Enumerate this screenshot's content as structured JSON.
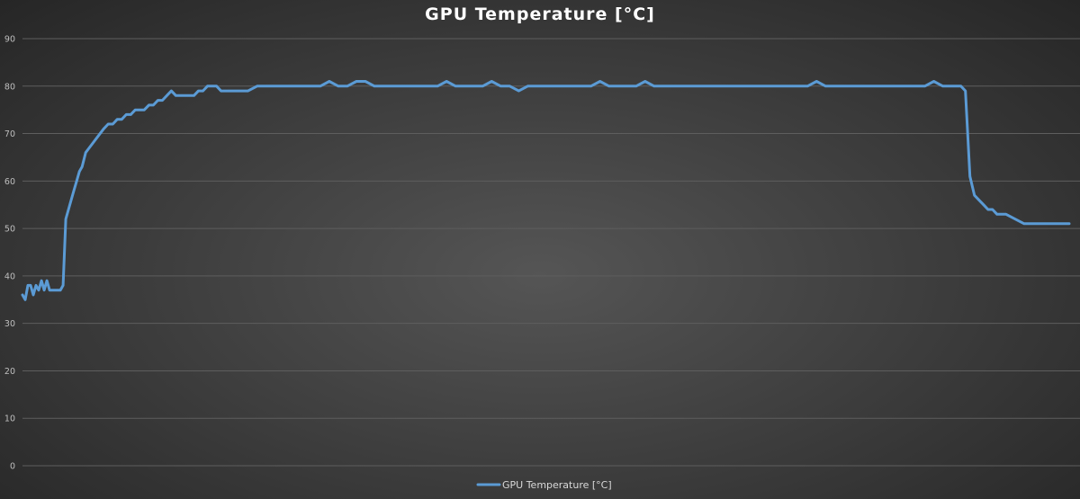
{
  "chart_data": {
    "type": "line",
    "title": "GPU Temperature [°C]",
    "xlabel": "",
    "ylabel": "",
    "ylim": [
      0,
      90
    ],
    "yticks": [
      0,
      10,
      20,
      30,
      40,
      50,
      60,
      70,
      80,
      90
    ],
    "grid": true,
    "legend_position": "bottom",
    "series_color": "#5B9BD5",
    "series": [
      {
        "name": "GPU Temperature [°C]",
        "x": [
          0,
          3,
          6,
          9,
          12,
          15,
          18,
          21,
          24,
          27,
          30,
          33,
          36,
          39,
          42,
          45,
          48,
          51,
          54,
          57,
          60,
          63,
          66,
          70,
          74,
          78,
          82,
          86,
          90,
          95,
          100,
          105,
          110,
          115,
          120,
          125,
          130,
          135,
          140,
          145,
          150,
          155,
          160,
          165,
          170,
          175,
          180,
          185,
          190,
          195,
          200,
          205,
          210,
          215,
          220,
          230,
          240,
          250,
          260,
          270,
          280,
          290,
          300,
          310,
          320,
          330,
          340,
          350,
          360,
          370,
          380,
          390,
          400,
          410,
          420,
          430,
          440,
          450,
          460,
          470,
          480,
          490,
          500,
          510,
          520,
          530,
          540,
          550,
          560,
          570,
          580,
          590,
          600,
          610,
          620,
          630,
          640,
          650,
          660,
          670,
          680,
          690,
          700,
          710,
          720,
          730,
          740,
          750,
          760,
          770,
          780,
          790,
          800,
          810,
          820,
          830,
          840,
          850,
          860,
          870,
          880,
          890,
          900,
          910,
          920,
          930,
          940,
          950,
          960,
          970,
          980,
          990,
          1000,
          1010,
          1020,
          1025,
          1028,
          1031,
          1034,
          1037,
          1040,
          1045,
          1050,
          1055,
          1060,
          1065,
          1070,
          1075,
          1080,
          1090,
          1100,
          1110,
          1120,
          1130,
          1140,
          1145,
          1148,
          1151,
          1154,
          1160
        ],
        "values": [
          36,
          35,
          38,
          38,
          36,
          38,
          37,
          39,
          37,
          39,
          37,
          37,
          37,
          37,
          37,
          38,
          52,
          54,
          56,
          58,
          60,
          62,
          63,
          66,
          67,
          68,
          69,
          70,
          71,
          72,
          72,
          73,
          73,
          74,
          74,
          75,
          75,
          75,
          76,
          76,
          77,
          77,
          78,
          79,
          78,
          78,
          78,
          78,
          78,
          79,
          79,
          80,
          80,
          80,
          79,
          79,
          79,
          79,
          80,
          80,
          80,
          80,
          80,
          80,
          80,
          80,
          81,
          80,
          80,
          81,
          81,
          80,
          80,
          80,
          80,
          80,
          80,
          80,
          80,
          81,
          80,
          80,
          80,
          80,
          81,
          80,
          80,
          79,
          80,
          80,
          80,
          80,
          80,
          80,
          80,
          80,
          81,
          80,
          80,
          80,
          80,
          81,
          80,
          80,
          80,
          80,
          80,
          80,
          80,
          80,
          80,
          80,
          80,
          80,
          80,
          80,
          80,
          80,
          80,
          80,
          81,
          80,
          80,
          80,
          80,
          80,
          80,
          80,
          80,
          80,
          80,
          80,
          80,
          81,
          80,
          80,
          80,
          80,
          80,
          80,
          80,
          79,
          61,
          57,
          56,
          55,
          54,
          54,
          53,
          53,
          52,
          51,
          51,
          51,
          51,
          51,
          51,
          51,
          51,
          51
        ]
      }
    ]
  }
}
